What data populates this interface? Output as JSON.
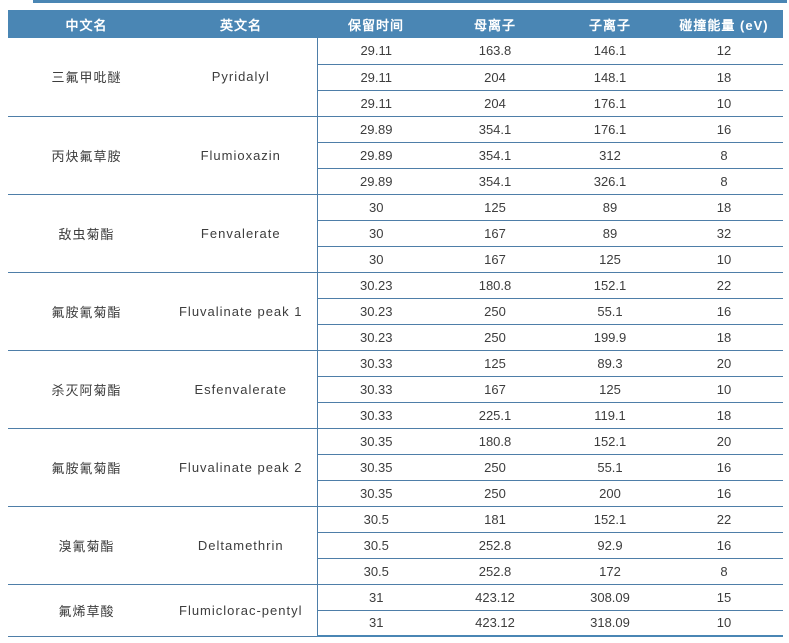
{
  "table": {
    "headers": [
      "中文名",
      "英文名",
      "保留时间",
      "母离子",
      "子离子",
      "碰撞能量 (eV)"
    ],
    "column_names": [
      "retention-time",
      "parent-ion",
      "product-ion",
      "collision-energy"
    ],
    "groups": [
      {
        "cn": "三氟甲吡醚",
        "en": "Pyridalyl",
        "rows": [
          [
            "29.11",
            "163.8",
            "146.1",
            "12"
          ],
          [
            "29.11",
            "204",
            "148.1",
            "18"
          ],
          [
            "29.11",
            "204",
            "176.1",
            "10"
          ]
        ]
      },
      {
        "cn": "丙炔氟草胺",
        "en": "Flumioxazin",
        "rows": [
          [
            "29.89",
            "354.1",
            "176.1",
            "16"
          ],
          [
            "29.89",
            "354.1",
            "312",
            "8"
          ],
          [
            "29.89",
            "354.1",
            "326.1",
            "8"
          ]
        ]
      },
      {
        "cn": "敌虫菊酯",
        "en": "Fenvalerate",
        "rows": [
          [
            "30",
            "125",
            "89",
            "18"
          ],
          [
            "30",
            "167",
            "89",
            "32"
          ],
          [
            "30",
            "167",
            "125",
            "10"
          ]
        ]
      },
      {
        "cn": "氟胺氰菊酯",
        "en": "Fluvalinate peak 1",
        "rows": [
          [
            "30.23",
            "180.8",
            "152.1",
            "22"
          ],
          [
            "30.23",
            "250",
            "55.1",
            "16"
          ],
          [
            "30.23",
            "250",
            "199.9",
            "18"
          ]
        ]
      },
      {
        "cn": "杀灭阿菊酯",
        "en": "Esfenvalerate",
        "rows": [
          [
            "30.33",
            "125",
            "89.3",
            "20"
          ],
          [
            "30.33",
            "167",
            "125",
            "10"
          ],
          [
            "30.33",
            "225.1",
            "119.1",
            "18"
          ]
        ]
      },
      {
        "cn": "氟胺氰菊酯",
        "en": "Fluvalinate peak 2",
        "rows": [
          [
            "30.35",
            "180.8",
            "152.1",
            "20"
          ],
          [
            "30.35",
            "250",
            "55.1",
            "16"
          ],
          [
            "30.35",
            "250",
            "200",
            "16"
          ]
        ]
      },
      {
        "cn": "溴氰菊酯",
        "en": "Deltamethrin",
        "rows": [
          [
            "30.5",
            "181",
            "152.1",
            "22"
          ],
          [
            "30.5",
            "252.8",
            "92.9",
            "16"
          ],
          [
            "30.5",
            "252.8",
            "172",
            "8"
          ]
        ]
      },
      {
        "cn": "氟烯草酸",
        "en": "Flumiclorac-pentyl",
        "rows": [
          [
            "31",
            "423.12",
            "308.09",
            "15"
          ],
          [
            "31",
            "423.12",
            "318.09",
            "10"
          ]
        ]
      }
    ],
    "colors": {
      "header_bg": "#4a86b4",
      "line": "#4e7ea8",
      "header_text": "#ffffff",
      "body_text": "#3d3d3d"
    }
  }
}
